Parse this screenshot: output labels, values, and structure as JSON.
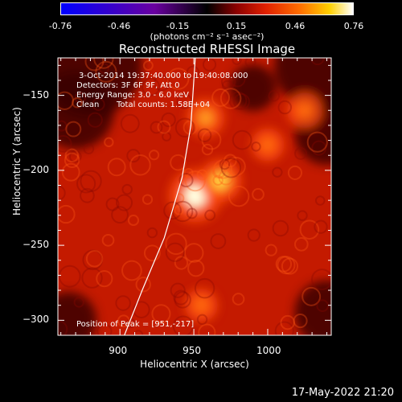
{
  "colorbar": {
    "ticks": [
      "-0.76",
      "-0.46",
      "-0.15",
      "0.15",
      "0.46",
      "0.76"
    ],
    "unit": "(photons cm⁻² s⁻¹ asec⁻²)"
  },
  "chart_data": {
    "type": "heatmap",
    "title": "Reconstructed RHESSI Image",
    "xlabel": "Heliocentric X (arcsec)",
    "ylabel": "Heliocentric Y (arcsec)",
    "xlim": [
      858,
      1043
    ],
    "ylim": [
      -310,
      -125
    ],
    "xticks": [
      "900",
      "950",
      "1000"
    ],
    "yticks": [
      "-150",
      "-200",
      "-250",
      "-300"
    ],
    "color_range": [
      -0.76,
      0.76
    ],
    "peak": {
      "x": 951,
      "y": -217
    },
    "sources": [
      {
        "x": 951,
        "y": -217,
        "intensity": 0.76
      },
      {
        "x": 968,
        "y": -207,
        "intensity": 0.55
      },
      {
        "x": 958,
        "y": -165,
        "intensity": 0.45
      },
      {
        "x": 1000,
        "y": -183,
        "intensity": 0.35
      },
      {
        "x": 955,
        "y": -290,
        "intensity": 0.35
      },
      {
        "x": 1025,
        "y": -160,
        "intensity": 0.4
      }
    ],
    "limb_curve": [
      [
        903,
        -310
      ],
      [
        915,
        -280
      ],
      [
        930,
        -245
      ],
      [
        942,
        -205
      ],
      [
        948,
        -170
      ],
      [
        951,
        -125
      ]
    ]
  },
  "info": {
    "time": "3-Oct-2014 19:37:40.000 to 19:40:08.000",
    "detectors": "Detectors: 3F 6F 9F, Att 0",
    "energy": "Energy Range: 3.0 - 6.0 keV",
    "method": "Clean",
    "counts": "Total counts: 1.58E+04",
    "peak_text": "Position of Peak = [951,-217]"
  },
  "timestamp": "17-May-2022 21:20"
}
